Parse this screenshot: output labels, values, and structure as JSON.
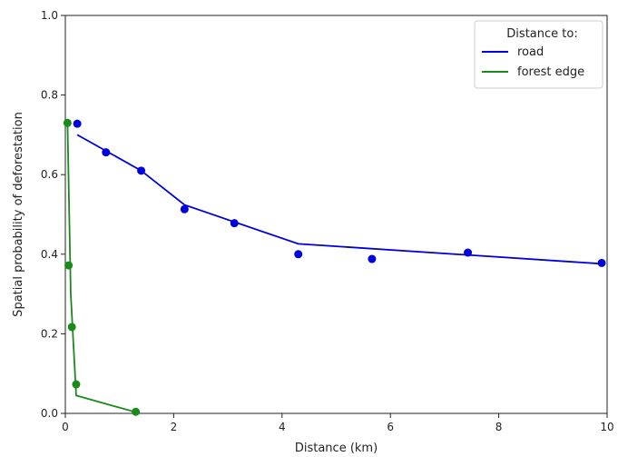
{
  "chart_data": {
    "type": "line",
    "xlabel": "Distance (km)",
    "ylabel": "Spatial probability of deforestation",
    "xlim": [
      0,
      10
    ],
    "ylim": [
      0,
      1.0
    ],
    "xticks": [
      0,
      2,
      4,
      6,
      8,
      10
    ],
    "yticks": [
      0.0,
      0.2,
      0.4,
      0.6,
      0.8,
      1.0
    ],
    "xtick_labels": [
      "0",
      "2",
      "4",
      "6",
      "8",
      "10"
    ],
    "ytick_labels": [
      "0.0",
      "0.2",
      "0.4",
      "0.6",
      "0.8",
      "1.0"
    ],
    "grid": false,
    "legend": {
      "title": "Distance to:",
      "placement": "top-right"
    },
    "series": [
      {
        "name": "road",
        "color": "#0000dd",
        "points": [
          {
            "x": 0.22,
            "y": 0.728
          },
          {
            "x": 0.75,
            "y": 0.656
          },
          {
            "x": 1.4,
            "y": 0.61
          },
          {
            "x": 2.2,
            "y": 0.513
          },
          {
            "x": 3.12,
            "y": 0.478
          },
          {
            "x": 4.3,
            "y": 0.4
          },
          {
            "x": 5.66,
            "y": 0.388
          },
          {
            "x": 7.43,
            "y": 0.404
          },
          {
            "x": 9.9,
            "y": 0.378
          }
        ],
        "line": [
          {
            "x": 0.22,
            "y": 0.7
          },
          {
            "x": 1.4,
            "y": 0.61
          },
          {
            "x": 2.2,
            "y": 0.524
          },
          {
            "x": 4.3,
            "y": 0.426
          },
          {
            "x": 9.9,
            "y": 0.376
          }
        ]
      },
      {
        "name": "forest edge",
        "color": "#1a8a1a",
        "points": [
          {
            "x": 0.04,
            "y": 0.73
          },
          {
            "x": 0.06,
            "y": 0.372
          },
          {
            "x": 0.12,
            "y": 0.217
          },
          {
            "x": 0.2,
            "y": 0.073
          },
          {
            "x": 1.3,
            "y": 0.004
          }
        ],
        "line": [
          {
            "x": 0.04,
            "y": 0.73
          },
          {
            "x": 0.1,
            "y": 0.3
          },
          {
            "x": 0.2,
            "y": 0.045
          },
          {
            "x": 1.3,
            "y": 0.003
          }
        ]
      }
    ]
  }
}
